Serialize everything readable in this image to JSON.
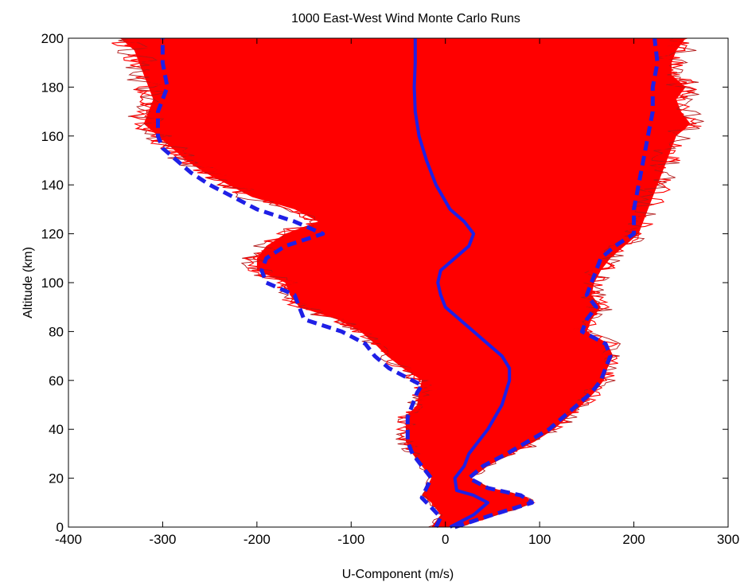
{
  "chart_data": {
    "type": "line",
    "title": "1000 East-West Wind Monte Carlo Runs",
    "xlabel": "U-Component (m/s)",
    "ylabel": "Altitude (km)",
    "xlim": [
      -400,
      300
    ],
    "ylim": [
      0,
      200
    ],
    "xticks": [
      "-400",
      "-300",
      "-200",
      "-100",
      "0",
      "100",
      "200",
      "300"
    ],
    "yticks": [
      "0",
      "20",
      "40",
      "60",
      "80",
      "100",
      "120",
      "140",
      "160",
      "180",
      "200"
    ],
    "grid": false,
    "colors": {
      "ensemble": "#ff0000",
      "ensemble_edge": "#b01818",
      "mean": "#1f1fe6",
      "bounds": "#1f1fe6"
    },
    "series": [
      {
        "style": "solid",
        "role": "mean",
        "y": [
          0,
          5,
          10,
          13,
          15,
          20,
          25,
          30,
          40,
          50,
          60,
          65,
          70,
          75,
          80,
          85,
          90,
          95,
          100,
          105,
          110,
          115,
          120,
          125,
          130,
          140,
          150,
          160,
          170,
          180,
          190,
          200
        ],
        "x": [
          5,
          30,
          45,
          30,
          12,
          10,
          20,
          25,
          45,
          60,
          68,
          68,
          60,
          45,
          30,
          15,
          0,
          -5,
          -8,
          -5,
          10,
          25,
          30,
          20,
          5,
          -10,
          -20,
          -28,
          -32,
          -33,
          -32,
          -32
        ]
      },
      {
        "style": "dashed",
        "role": "ensemble lower bound",
        "y": [
          0,
          4,
          8,
          12,
          16,
          20,
          25,
          30,
          35,
          40,
          45,
          50,
          55,
          58,
          62,
          65,
          70,
          75,
          80,
          85,
          90,
          95,
          100,
          105,
          110,
          115,
          120,
          125,
          130,
          135,
          140,
          145,
          150,
          155,
          160,
          170,
          180,
          190,
          200
        ],
        "x": [
          -10,
          -5,
          -15,
          -25,
          -20,
          -15,
          -25,
          -35,
          -40,
          -40,
          -40,
          -35,
          -30,
          -25,
          -45,
          -60,
          -75,
          -85,
          -110,
          -150,
          -155,
          -160,
          -190,
          -195,
          -190,
          -170,
          -130,
          -160,
          -200,
          -225,
          -250,
          -270,
          -285,
          -300,
          -305,
          -305,
          -295,
          -300,
          -300
        ]
      },
      {
        "style": "dashed",
        "role": "ensemble upper bound",
        "y": [
          0,
          5,
          10,
          13,
          16,
          20,
          25,
          30,
          40,
          50,
          55,
          60,
          65,
          70,
          75,
          80,
          85,
          90,
          95,
          100,
          105,
          110,
          115,
          120,
          125,
          130,
          140,
          150,
          160,
          170,
          180,
          190,
          200
        ],
        "x": [
          10,
          50,
          92,
          80,
          45,
          25,
          40,
          65,
          110,
          140,
          155,
          165,
          170,
          175,
          170,
          145,
          150,
          160,
          150,
          155,
          160,
          165,
          180,
          200,
          200,
          200,
          205,
          210,
          215,
          220,
          220,
          225,
          222
        ]
      }
    ],
    "envelope": {
      "role": "1000 Monte Carlo runs",
      "y": [
        0,
        5,
        10,
        13,
        16,
        20,
        25,
        30,
        35,
        40,
        45,
        50,
        55,
        60,
        65,
        70,
        75,
        80,
        85,
        90,
        95,
        100,
        105,
        110,
        115,
        120,
        125,
        130,
        135,
        140,
        145,
        150,
        155,
        160,
        165,
        170,
        175,
        180,
        185,
        190,
        195,
        200
      ],
      "lower": [
        -15,
        -5,
        -15,
        -25,
        -20,
        -15,
        -25,
        -35,
        -42,
        -42,
        -42,
        -30,
        -28,
        -25,
        -45,
        -62,
        -75,
        -90,
        -115,
        -155,
        -165,
        -170,
        -200,
        -200,
        -190,
        -170,
        -135,
        -160,
        -205,
        -230,
        -255,
        -275,
        -290,
        -305,
        -320,
        -315,
        -310,
        -315,
        -320,
        -325,
        -330,
        -345
      ],
      "upper": [
        15,
        55,
        95,
        82,
        48,
        28,
        45,
        70,
        95,
        115,
        130,
        145,
        158,
        168,
        172,
        178,
        172,
        150,
        155,
        165,
        155,
        158,
        165,
        175,
        190,
        205,
        210,
        215,
        220,
        225,
        230,
        235,
        240,
        245,
        260,
        250,
        245,
        255,
        240,
        240,
        245,
        255
      ]
    }
  }
}
